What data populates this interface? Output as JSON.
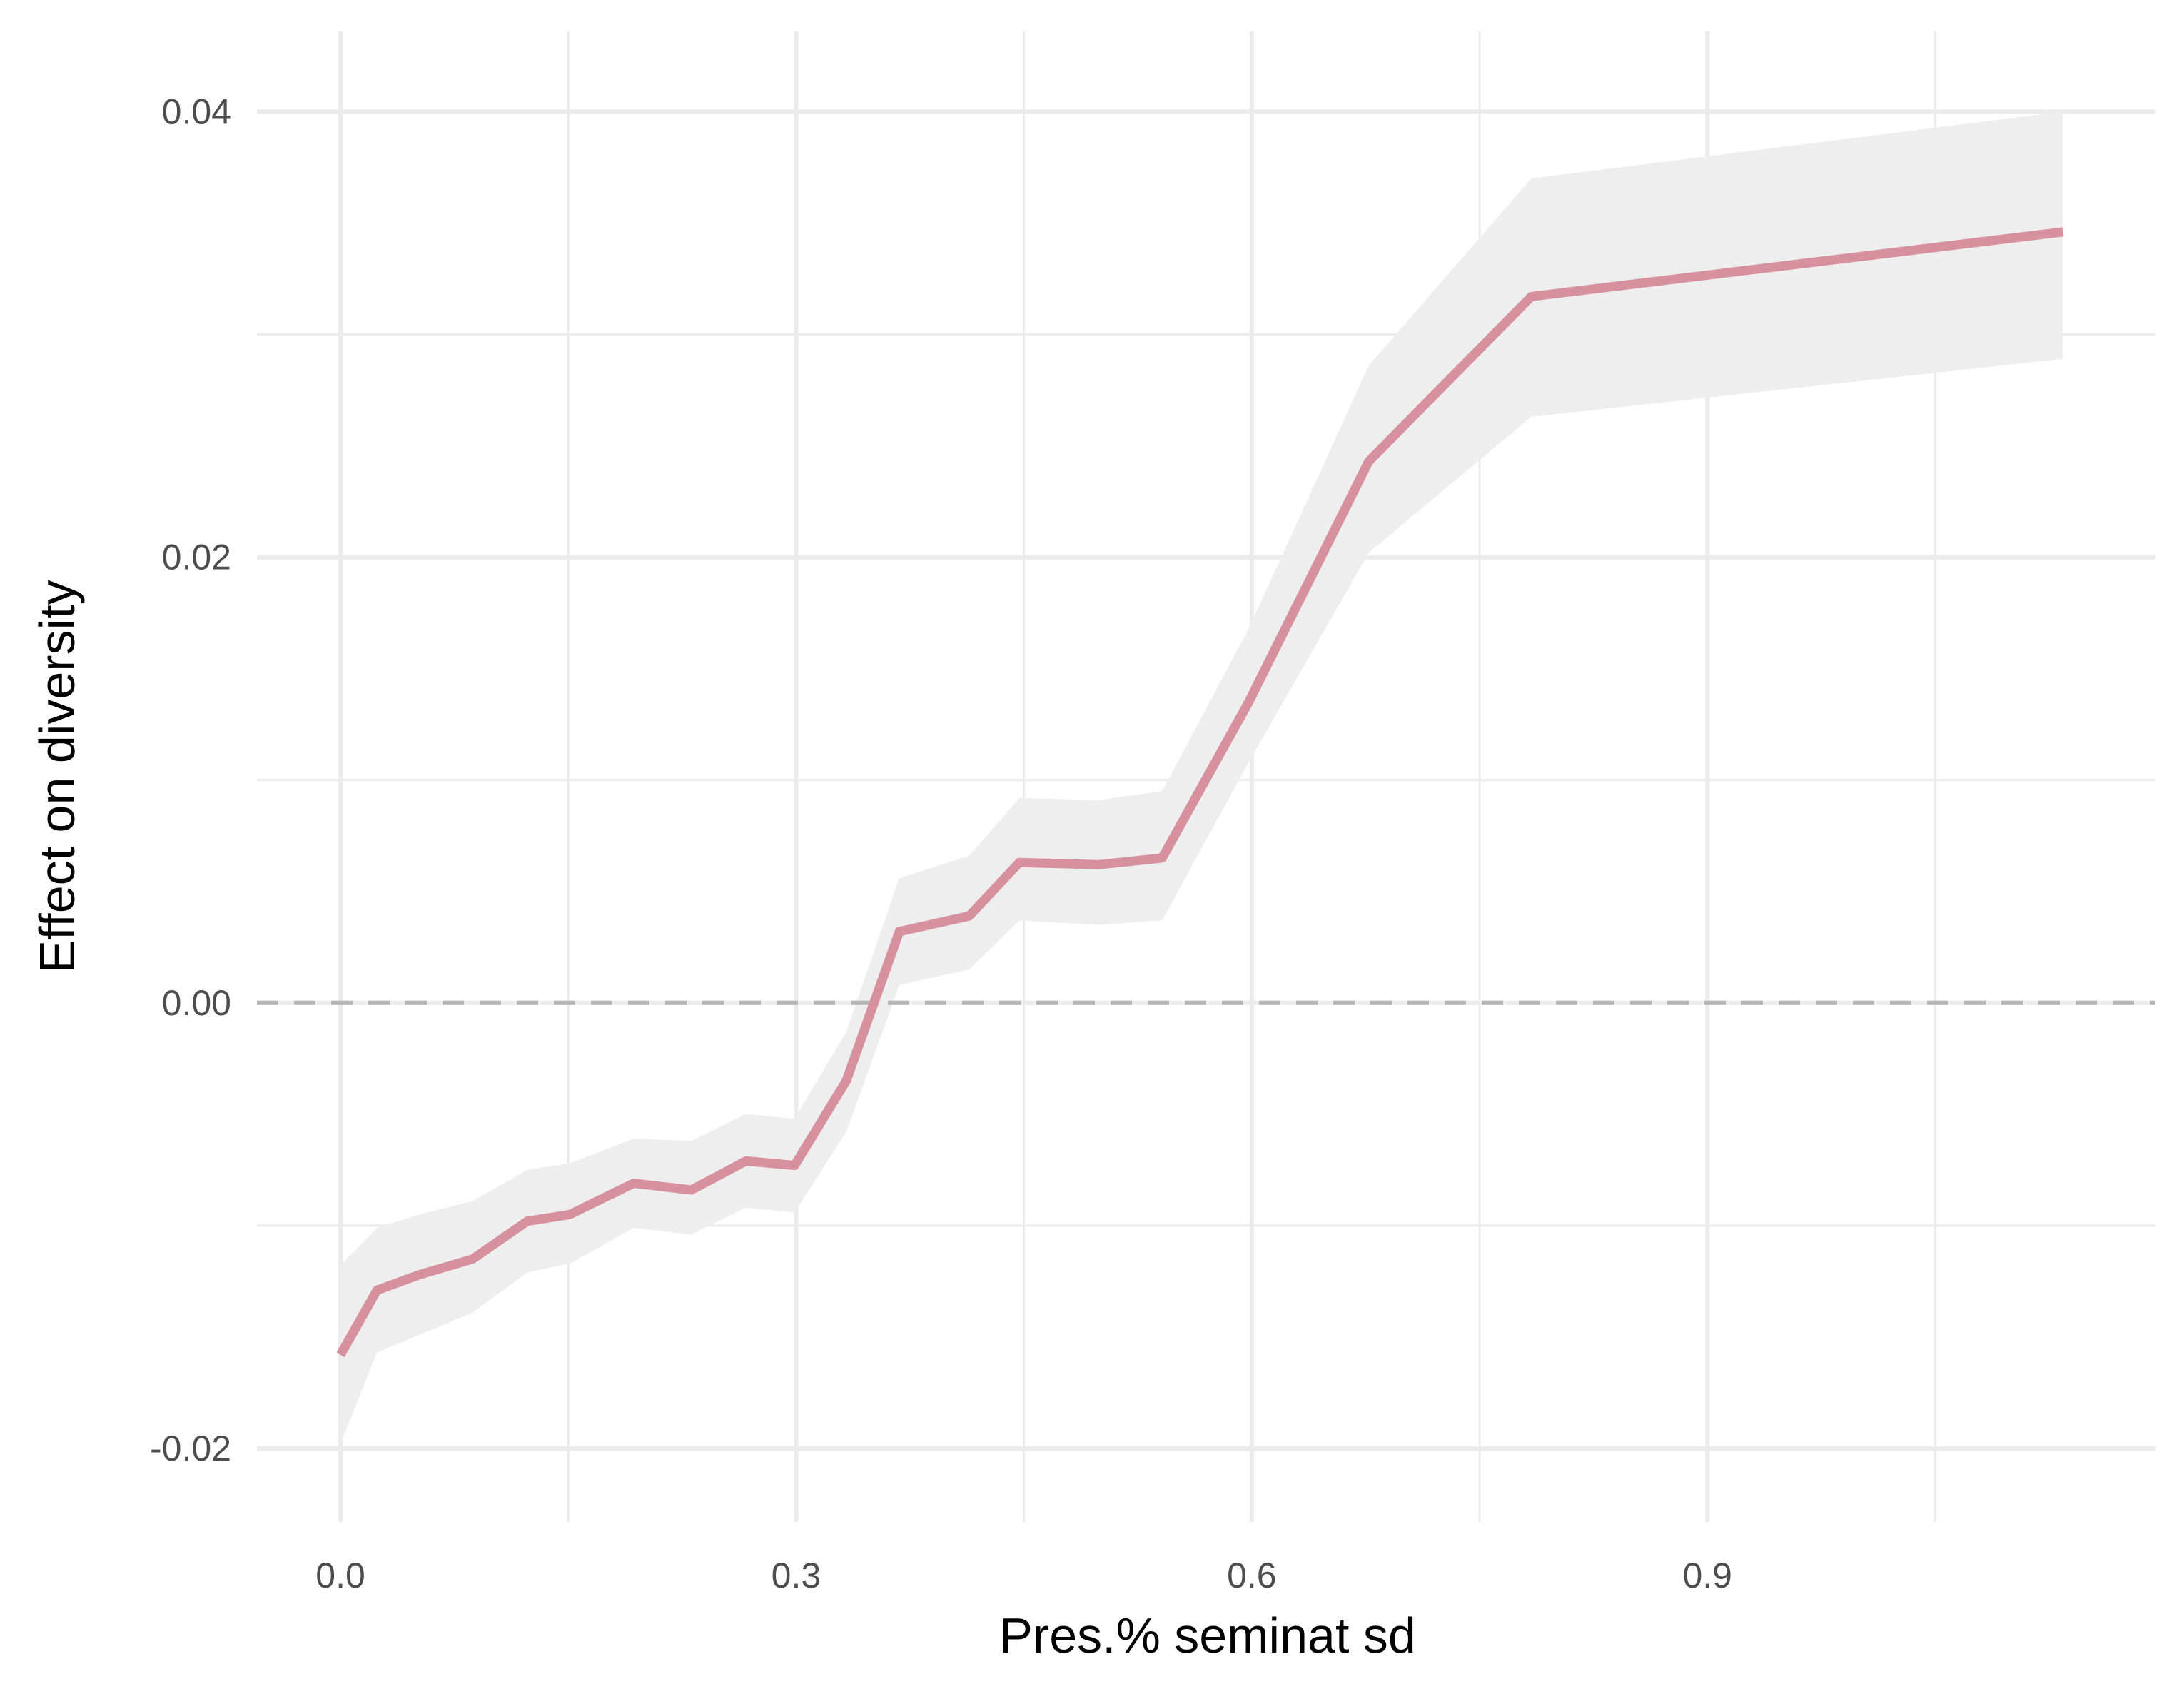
{
  "chart_data": {
    "type": "line",
    "xlabel": "Pres.% seminat sd",
    "ylabel": "Effect on diversity",
    "xlim": [
      -0.055,
      1.195
    ],
    "ylim": [
      -0.0233,
      0.0436
    ],
    "x_ticks": [
      0.0,
      0.3,
      0.6,
      0.9
    ],
    "x_tick_labels": [
      "0.0",
      "0.3",
      "0.6",
      "0.9"
    ],
    "x_minor_ticks": [
      0.15,
      0.45,
      0.75,
      1.05
    ],
    "y_ticks": [
      -0.02,
      0.0,
      0.02,
      0.04
    ],
    "y_tick_labels": [
      "-0.02",
      "0.00",
      "0.02",
      "0.04"
    ],
    "y_minor_ticks": [
      -0.01,
      0.01,
      0.03
    ],
    "grid": true,
    "reference_line": {
      "y": 0,
      "style": "dashed",
      "color": "#b3b3b3"
    },
    "colors": {
      "line": "#d6909e",
      "ribbon": "#eeeeee"
    },
    "series": [
      {
        "x": [
          0.0,
          0.024,
          0.052,
          0.087,
          0.123,
          0.151,
          0.193,
          0.231,
          0.267,
          0.299,
          0.333,
          0.368,
          0.414,
          0.447,
          0.499,
          0.541,
          0.598,
          0.677,
          0.784,
          1.134
        ],
        "y": [
          -0.0158,
          -0.0129,
          -0.0122,
          -0.0115,
          -0.0098,
          -0.0095,
          -0.0081,
          -0.0084,
          -0.0071,
          -0.0073,
          -0.0035,
          0.0032,
          0.0039,
          0.0063,
          0.0062,
          0.0065,
          0.0135,
          0.0243,
          0.0317,
          0.0346
        ],
        "lower": [
          -0.0198,
          -0.0157,
          -0.0149,
          -0.0139,
          -0.0121,
          -0.0117,
          -0.0101,
          -0.0104,
          -0.0092,
          -0.0094,
          -0.0058,
          0.0008,
          0.0015,
          0.0037,
          0.0035,
          0.0037,
          0.0108,
          0.0202,
          0.0263,
          0.0289
        ],
        "upper": [
          -0.0118,
          -0.0101,
          -0.0095,
          -0.0089,
          -0.0075,
          -0.0072,
          -0.0061,
          -0.0062,
          -0.005,
          -0.0052,
          -0.0013,
          0.0056,
          0.0066,
          0.0092,
          0.0091,
          0.0095,
          0.0168,
          0.0286,
          0.037,
          0.04
        ]
      }
    ]
  }
}
